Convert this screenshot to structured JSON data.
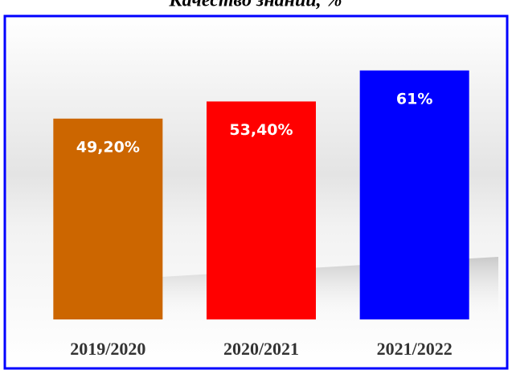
{
  "chart_data": {
    "type": "bar",
    "title": "Качество знаний, %",
    "categories": [
      "2019/2020",
      "2020/2021",
      "2021/2022"
    ],
    "values": [
      49.2,
      53.4,
      61
    ],
    "value_labels": [
      "49,20%",
      "53,40%",
      "61%"
    ],
    "colors": [
      "#cc6600",
      "#ff0000",
      "#0000ff"
    ],
    "ylim": [
      0,
      70
    ]
  }
}
